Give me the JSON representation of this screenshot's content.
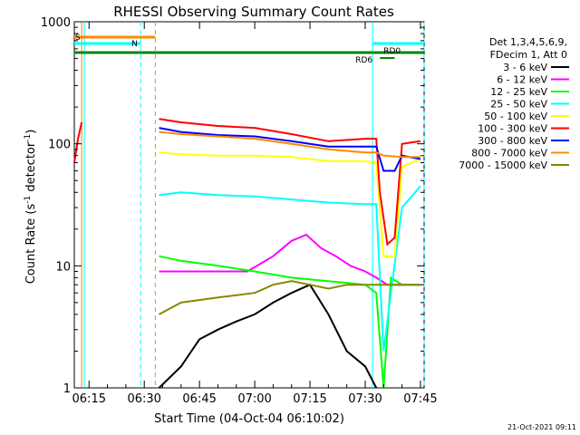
{
  "chart_data": {
    "type": "line",
    "title": "RHESSI Observing Summary Count Rates",
    "xlabel": "Start Time (04-Oct-04 06:10:02)",
    "ylabel_main": "Count Rate (s",
    "ylabel_sup1": "-1",
    "ylabel_mid": " detector",
    "ylabel_sup2": "-1",
    "ylabel_end": ")",
    "yscale": "log",
    "ylim": [
      1,
      1000
    ],
    "xlim": [
      "06:11",
      "07:46"
    ],
    "x_ticks": [
      "06:15",
      "06:30",
      "06:45",
      "07:00",
      "07:15",
      "07:30",
      "07:45"
    ],
    "y_ticks": [
      "1",
      "10",
      "100",
      "1000"
    ],
    "info_lines": [
      "Det 1,3,4,5,6,9,",
      "FDecim 1, Att 0"
    ],
    "legend_position": "right",
    "series": [
      {
        "name": "3 - 6 keV",
        "color": "#000000",
        "points": [
          [
            "06:34",
            1
          ],
          [
            "06:40",
            1.5
          ],
          [
            "06:45",
            2.5
          ],
          [
            "06:50",
            3
          ],
          [
            "06:55",
            3.5
          ],
          [
            "07:00",
            4
          ],
          [
            "07:05",
            5
          ],
          [
            "07:10",
            6
          ],
          [
            "07:15",
            7
          ],
          [
            "07:20",
            4
          ],
          [
            "07:25",
            2
          ],
          [
            "07:30",
            1.5
          ],
          [
            "07:33",
            1
          ]
        ]
      },
      {
        "name": "6 - 12 keV",
        "color": "#ff00ff",
        "points": [
          [
            "06:34",
            9
          ],
          [
            "06:40",
            9
          ],
          [
            "06:50",
            9
          ],
          [
            "06:58",
            9
          ],
          [
            "07:05",
            12
          ],
          [
            "07:10",
            16
          ],
          [
            "07:14",
            18
          ],
          [
            "07:18",
            14
          ],
          [
            "07:22",
            12
          ],
          [
            "07:26",
            10
          ],
          [
            "07:30",
            9
          ],
          [
            "07:33",
            8
          ],
          [
            "07:36",
            7
          ],
          [
            "07:40",
            7
          ],
          [
            "07:45",
            7
          ]
        ]
      },
      {
        "name": "12 - 25 keV",
        "color": "#00ff00",
        "points": [
          [
            "06:34",
            12
          ],
          [
            "06:40",
            11
          ],
          [
            "06:50",
            10
          ],
          [
            "07:00",
            9
          ],
          [
            "07:10",
            8
          ],
          [
            "07:20",
            7.5
          ],
          [
            "07:30",
            7
          ],
          [
            "07:33",
            6
          ],
          [
            "07:35",
            1
          ],
          [
            "07:37",
            8
          ],
          [
            "07:40",
            7
          ],
          [
            "07:45",
            7
          ]
        ]
      },
      {
        "name": "25 - 50 keV",
        "color": "#00ffff",
        "points": [
          [
            "06:34",
            38
          ],
          [
            "06:40",
            40
          ],
          [
            "06:50",
            38
          ],
          [
            "07:00",
            37
          ],
          [
            "07:10",
            35
          ],
          [
            "07:20",
            33
          ],
          [
            "07:30",
            32
          ],
          [
            "07:33",
            32
          ],
          [
            "07:35",
            2
          ],
          [
            "07:37",
            6
          ],
          [
            "07:40",
            30
          ],
          [
            "07:45",
            45
          ]
        ]
      },
      {
        "name": "50 - 100 keV",
        "color": "#ffff00",
        "points": [
          [
            "06:34",
            85
          ],
          [
            "06:40",
            82
          ],
          [
            "06:50",
            80
          ],
          [
            "07:00",
            80
          ],
          [
            "07:10",
            78
          ],
          [
            "07:20",
            72
          ],
          [
            "07:30",
            72
          ],
          [
            "07:33",
            70
          ],
          [
            "07:35",
            12
          ],
          [
            "07:38",
            12
          ],
          [
            "07:40",
            65
          ],
          [
            "07:45",
            75
          ]
        ]
      },
      {
        "name": "100 - 300 keV",
        "color": "#ff0000",
        "points": [
          [
            "06:34",
            160
          ],
          [
            "06:40",
            150
          ],
          [
            "06:50",
            140
          ],
          [
            "07:00",
            135
          ],
          [
            "07:10",
            120
          ],
          [
            "07:20",
            105
          ],
          [
            "07:30",
            110
          ],
          [
            "07:33",
            110
          ],
          [
            "07:34",
            40
          ],
          [
            "07:36",
            15
          ],
          [
            "07:38",
            17
          ],
          [
            "07:40",
            100
          ],
          [
            "07:45",
            105
          ]
        ]
      },
      {
        "name": "300 - 800 keV",
        "color": "#0000ff",
        "points": [
          [
            "06:34",
            135
          ],
          [
            "06:40",
            125
          ],
          [
            "06:50",
            118
          ],
          [
            "07:00",
            115
          ],
          [
            "07:10",
            105
          ],
          [
            "07:20",
            95
          ],
          [
            "07:30",
            95
          ],
          [
            "07:33",
            95
          ],
          [
            "07:35",
            60
          ],
          [
            "07:38",
            60
          ],
          [
            "07:40",
            80
          ],
          [
            "07:45",
            75
          ]
        ]
      },
      {
        "name": "800 - 7000 keV",
        "color": "#ff8800",
        "points": [
          [
            "06:34",
            125
          ],
          [
            "06:40",
            120
          ],
          [
            "06:50",
            115
          ],
          [
            "07:00",
            110
          ],
          [
            "07:10",
            100
          ],
          [
            "07:20",
            90
          ],
          [
            "07:30",
            85
          ],
          [
            "07:33",
            85
          ],
          [
            "07:35",
            80
          ],
          [
            "07:40",
            78
          ],
          [
            "07:45",
            78
          ]
        ]
      },
      {
        "name": "7000 - 15000 keV",
        "color": "#888800",
        "points": [
          [
            "06:34",
            4
          ],
          [
            "06:40",
            5
          ],
          [
            "06:50",
            5.5
          ],
          [
            "07:00",
            6
          ],
          [
            "07:05",
            7
          ],
          [
            "07:10",
            7.5
          ],
          [
            "07:15",
            7
          ],
          [
            "07:20",
            6.5
          ],
          [
            "07:25",
            7
          ],
          [
            "07:30",
            7
          ],
          [
            "07:35",
            7
          ],
          [
            "07:40",
            7
          ],
          [
            "07:45",
            7
          ]
        ]
      }
    ],
    "early_segment": [
      [
        "06:11",
        70
      ],
      [
        "06:12",
        110
      ],
      [
        "06:13",
        150
      ]
    ],
    "top_bars": {
      "S": {
        "label": "S",
        "from": "06:11",
        "to": "06:33",
        "color": "#ff8800"
      },
      "N": {
        "label": "N",
        "from": "06:11",
        "to": "06:29",
        "color": "#00ffff"
      },
      "SAA": {
        "from": "07:32",
        "to": "07:46",
        "color": "#00ffff"
      },
      "RD0": {
        "label": "RD0",
        "color": "#008800"
      },
      "RD6": {
        "label": "RD6",
        "color": "#008800"
      },
      "night": {
        "from": "06:11",
        "to": "07:46",
        "color": "#008800"
      }
    },
    "vertical_lines": [
      {
        "time": "06:13",
        "color": "#ff8800",
        "style": "solid"
      },
      {
        "time": "06:13",
        "color": "#00ffff",
        "style": "solid"
      },
      {
        "time": "06:29",
        "color": "#00ffff",
        "style": "dashed"
      },
      {
        "time": "06:33",
        "color": "#ff8800",
        "style": "dashed"
      },
      {
        "time": "07:32",
        "color": "#00ffff",
        "style": "solid"
      },
      {
        "time": "07:46",
        "color": "#00ffff",
        "style": "dashed"
      }
    ]
  },
  "footer": {
    "timestamp": "21-Oct-2021 09:11"
  }
}
